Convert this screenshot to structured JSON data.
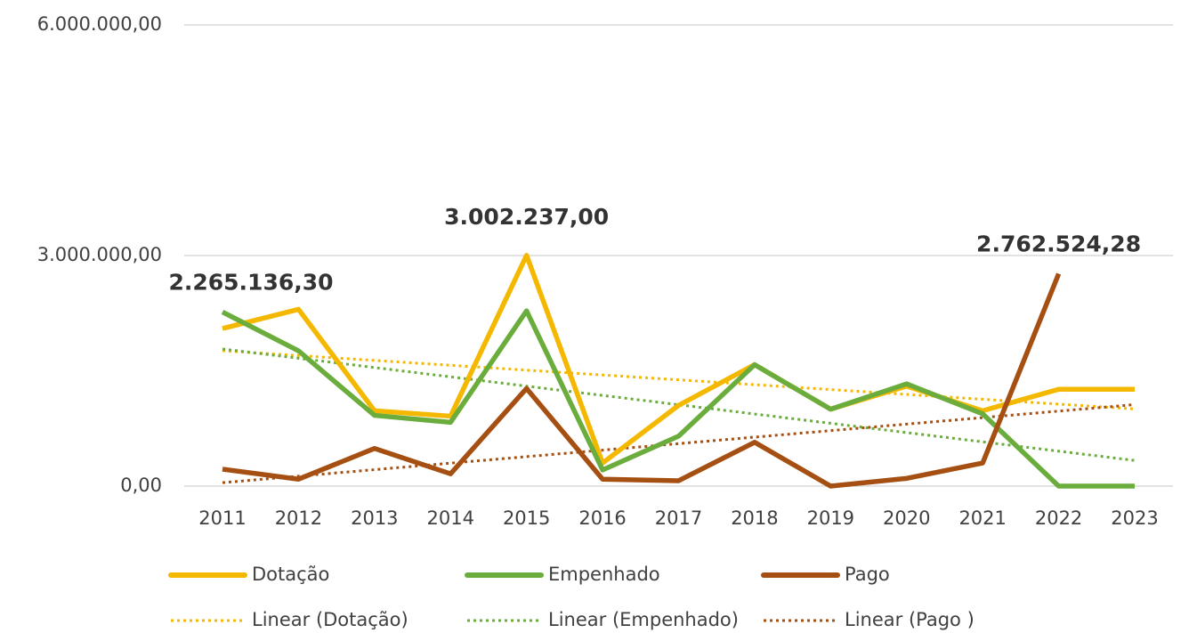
{
  "chart_data": {
    "type": "line",
    "categories": [
      "2011",
      "2012",
      "2013",
      "2014",
      "2015",
      "2016",
      "2017",
      "2018",
      "2019",
      "2020",
      "2021",
      "2022",
      "2023"
    ],
    "ylim": [
      0,
      6000000
    ],
    "yticks": [
      {
        "value": 0,
        "label": "0,00"
      },
      {
        "value": 3000000,
        "label": "3.000.000,00"
      },
      {
        "value": 6000000,
        "label": "6.000.000,00"
      }
    ],
    "grid": true,
    "legend": "bottom",
    "series": [
      {
        "name": "Dotação",
        "color": "#f5b800",
        "values": [
          2050000,
          2300000,
          980000,
          910000,
          3002237.0,
          300000,
          1050000,
          1580000,
          1000000,
          1300000,
          980000,
          1260000,
          1260000
        ],
        "value_labels": [
          null,
          null,
          null,
          null,
          "3.002.237,00",
          null,
          null,
          null,
          null,
          null,
          null,
          null,
          null
        ]
      },
      {
        "name": "Empenhado",
        "color": "#6aad3d",
        "values": [
          2265136.3,
          1760000,
          920000,
          830000,
          2280000,
          210000,
          650000,
          1580000,
          1000000,
          1330000,
          940000,
          0,
          0
        ],
        "value_labels": [
          "2.265.136,30",
          null,
          null,
          null,
          null,
          null,
          null,
          null,
          null,
          null,
          null,
          null,
          null
        ]
      },
      {
        "name": "Pago",
        "color": "#a64f12",
        "values": [
          220000,
          90000,
          490000,
          160000,
          1270000,
          90000,
          70000,
          570000,
          0,
          100000,
          300000,
          2762524.28,
          null
        ],
        "value_labels": [
          null,
          null,
          null,
          null,
          null,
          null,
          null,
          null,
          null,
          null,
          null,
          "2.762.524,28",
          null
        ]
      }
    ],
    "trendlines": [
      {
        "name": "Linear (Dotação)",
        "series": 0,
        "color": "#f5b800"
      },
      {
        "name": "Linear (Empenhado)",
        "series": 1,
        "color": "#6aad3d"
      },
      {
        "name": "Linear (Pago )",
        "series": 2,
        "color": "#a64f12"
      }
    ]
  }
}
